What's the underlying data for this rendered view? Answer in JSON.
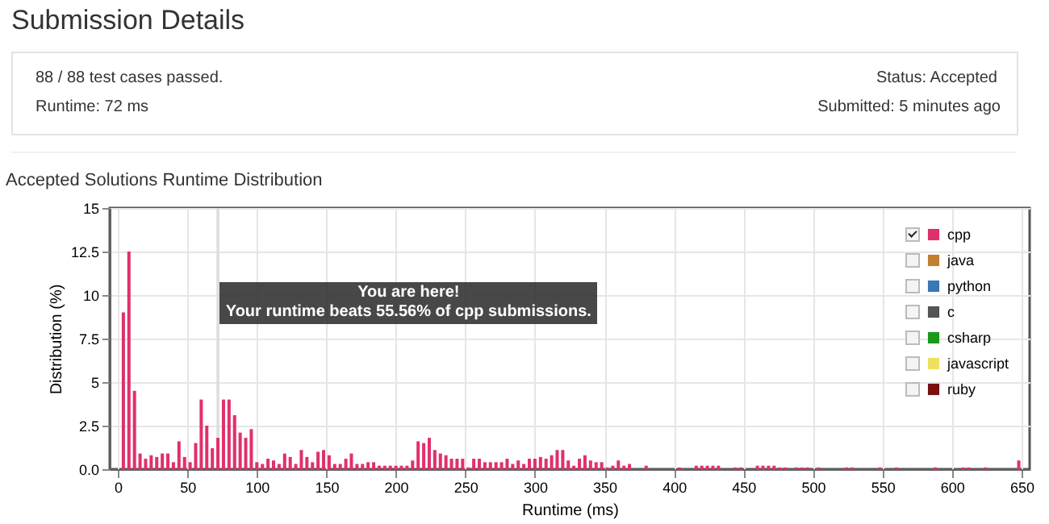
{
  "chart_data": {
    "type": "bar",
    "title": "Accepted Solutions Runtime Distribution",
    "xlabel": "Runtime (ms)",
    "ylabel": "Distribution (%)",
    "xlim": [
      0,
      650
    ],
    "xticks": [
      0,
      50,
      100,
      150,
      200,
      250,
      300,
      350,
      400,
      450,
      500,
      550,
      600,
      650
    ],
    "ylim": [
      0,
      15
    ],
    "yticks": [
      {
        "value": 0,
        "label": "0.0"
      },
      2.5,
      5,
      7.5,
      10,
      12.5,
      15
    ],
    "grid": true,
    "legend": "top right",
    "bands": [
      {
        "axis": "x",
        "from": 71,
        "to": 73,
        "color": "#dddddd"
      }
    ],
    "annotations": [
      "Submission Details",
      "88 / 88 test cases passed.",
      "Runtime: 72 ms",
      "Status: Accepted",
      "Submitted: 5 minutes ago",
      "You are here!\nYour runtime beats 55.56% of cpp submissions."
    ],
    "series": [
      {
        "name": "cpp",
        "color": "#e0306a",
        "x": [
          4,
          8,
          12,
          16,
          20,
          24,
          28,
          32,
          36,
          40,
          44,
          48,
          52,
          56,
          60,
          64,
          68,
          72,
          76,
          80,
          84,
          88,
          92,
          96,
          100,
          104,
          108,
          112,
          116,
          120,
          124,
          128,
          132,
          136,
          140,
          144,
          148,
          152,
          156,
          160,
          164,
          168,
          172,
          176,
          180,
          184,
          188,
          192,
          196,
          200,
          204,
          208,
          212,
          216,
          220,
          224,
          228,
          232,
          236,
          240,
          244,
          248,
          252,
          256,
          260,
          264,
          268,
          272,
          276,
          280,
          284,
          288,
          292,
          296,
          300,
          304,
          308,
          312,
          316,
          320,
          324,
          328,
          332,
          336,
          340,
          344,
          348,
          352,
          356,
          360,
          364,
          368,
          380,
          404,
          416,
          420,
          424,
          428,
          432,
          444,
          448,
          460,
          464,
          468,
          472,
          476,
          480,
          488,
          492,
          496,
          504,
          524,
          528,
          548,
          560,
          588,
          608,
          612,
          624,
          648
        ],
        "values": [
          9.0,
          12.5,
          4.5,
          0.9,
          0.6,
          0.8,
          0.7,
          0.9,
          0.9,
          0.4,
          1.6,
          0.7,
          0.4,
          1.5,
          4.0,
          2.5,
          1.2,
          1.8,
          4.0,
          4.0,
          3.1,
          2.1,
          1.8,
          2.3,
          0.4,
          0.3,
          0.6,
          0.5,
          0.3,
          0.9,
          0.7,
          0.3,
          1.1,
          0.7,
          0.4,
          1.0,
          1.1,
          0.8,
          0.3,
          0.3,
          0.6,
          0.9,
          0.3,
          0.3,
          0.4,
          0.4,
          0.2,
          0.2,
          0.2,
          0.2,
          0.2,
          0.2,
          0.5,
          1.6,
          1.5,
          1.8,
          1.1,
          0.9,
          0.8,
          0.6,
          0.6,
          0.6,
          0.1,
          0.6,
          0.6,
          0.4,
          0.4,
          0.4,
          0.4,
          0.6,
          0.3,
          0.5,
          0.3,
          0.6,
          0.6,
          0.7,
          0.6,
          0.8,
          1.1,
          1.1,
          0.5,
          0.2,
          0.6,
          0.8,
          0.5,
          0.4,
          0.4,
          0.1,
          0.2,
          0.5,
          0.2,
          0.3,
          0.2,
          0.1,
          0.2,
          0.2,
          0.2,
          0.2,
          0.2,
          0.1,
          0.1,
          0.2,
          0.2,
          0.2,
          0.2,
          0.1,
          0.1,
          0.1,
          0.1,
          0.1,
          0.1,
          0.1,
          0.1,
          0.1,
          0.1,
          0.1,
          0.1,
          0.1,
          0.1,
          0.5
        ]
      },
      {
        "name": "java",
        "color": "#c08030"
      },
      {
        "name": "python",
        "color": "#3a78b5"
      },
      {
        "name": "c",
        "color": "#555555"
      },
      {
        "name": "csharp",
        "color": "#1a9a1a"
      },
      {
        "name": "javascript",
        "color": "#f0e060"
      },
      {
        "name": "ruby",
        "color": "#7a1010"
      }
    ]
  }
}
